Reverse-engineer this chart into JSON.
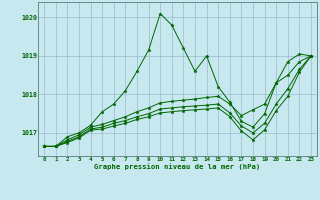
{
  "xlabel": "Graphe pression niveau de la mer (hPa)",
  "xlim": [
    -0.5,
    23.5
  ],
  "ylim": [
    1016.4,
    1020.4
  ],
  "yticks": [
    1017,
    1018,
    1019,
    1020
  ],
  "xticks": [
    0,
    1,
    2,
    3,
    4,
    5,
    6,
    7,
    8,
    9,
    10,
    11,
    12,
    13,
    14,
    15,
    16,
    17,
    18,
    19,
    20,
    21,
    22,
    23
  ],
  "background_color": "#c8e8f0",
  "grid_color": "#99bbcc",
  "line_color": "#006600",
  "figsize": [
    3.2,
    2.0
  ],
  "dpi": 100,
  "lines": [
    {
      "x": [
        0,
        1,
        2,
        3,
        4,
        5,
        6,
        7,
        8,
        9,
        10,
        11,
        12,
        13,
        14,
        15,
        16,
        17,
        18,
        19,
        20,
        21,
        22,
        23
      ],
      "y": [
        1016.65,
        1016.65,
        1016.9,
        1017.0,
        1017.2,
        1017.55,
        1017.75,
        1018.1,
        1018.6,
        1019.15,
        1020.1,
        1019.8,
        1019.2,
        1018.6,
        1019.0,
        1018.2,
        1017.8,
        1017.3,
        1017.15,
        1017.5,
        1018.3,
        1018.85,
        1019.05,
        1019.0
      ]
    },
    {
      "x": [
        0,
        1,
        2,
        3,
        4,
        5,
        6,
        7,
        8,
        9,
        10,
        11,
        12,
        13,
        14,
        15,
        16,
        17,
        18,
        19,
        20,
        21,
        22,
        23
      ],
      "y": [
        1016.65,
        1016.65,
        1016.82,
        1016.95,
        1017.15,
        1017.22,
        1017.32,
        1017.42,
        1017.55,
        1017.65,
        1017.78,
        1017.82,
        1017.85,
        1017.88,
        1017.92,
        1017.95,
        1017.75,
        1017.45,
        1017.6,
        1017.75,
        1018.3,
        1018.5,
        1018.85,
        1019.0
      ]
    },
    {
      "x": [
        0,
        1,
        2,
        3,
        4,
        5,
        6,
        7,
        8,
        9,
        10,
        11,
        12,
        13,
        14,
        15,
        16,
        17,
        18,
        19,
        20,
        21,
        22,
        23
      ],
      "y": [
        1016.65,
        1016.65,
        1016.78,
        1016.9,
        1017.1,
        1017.15,
        1017.25,
        1017.32,
        1017.42,
        1017.5,
        1017.62,
        1017.65,
        1017.68,
        1017.7,
        1017.72,
        1017.75,
        1017.52,
        1017.18,
        1017.0,
        1017.25,
        1017.75,
        1018.15,
        1018.65,
        1019.0
      ]
    },
    {
      "x": [
        0,
        1,
        2,
        3,
        4,
        5,
        6,
        7,
        8,
        9,
        10,
        11,
        12,
        13,
        14,
        15,
        16,
        17,
        18,
        19,
        20,
        21,
        22,
        23
      ],
      "y": [
        1016.65,
        1016.65,
        1016.75,
        1016.87,
        1017.07,
        1017.1,
        1017.18,
        1017.25,
        1017.35,
        1017.42,
        1017.52,
        1017.55,
        1017.58,
        1017.6,
        1017.62,
        1017.65,
        1017.42,
        1017.05,
        1016.82,
        1017.08,
        1017.58,
        1017.95,
        1018.58,
        1019.0
      ]
    }
  ]
}
